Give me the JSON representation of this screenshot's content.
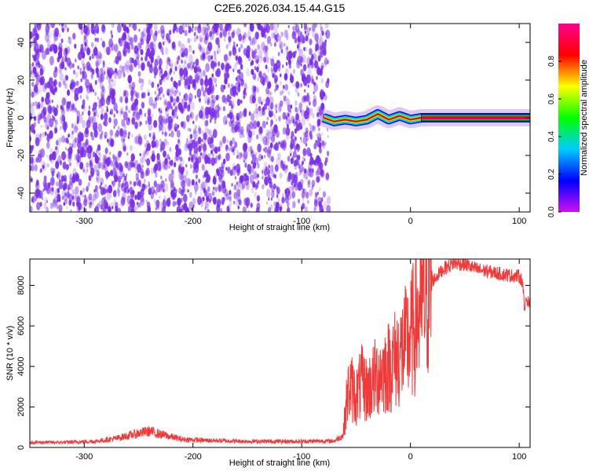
{
  "title": "C2E6.2026.034.15.44.G15",
  "colors": {
    "snr_line": "#ef3a3a",
    "spectrogram_noise": "#7a2fe6",
    "signal_core": "#e8004f",
    "colorbar_stops": [
      "#cc11ee",
      "#0000ff",
      "#00ccff",
      "#00ff00",
      "#ffff00",
      "#ff0000",
      "#ff0090"
    ]
  },
  "chart_data": [
    {
      "type": "heatmap",
      "title": "",
      "xlabel": "Height of straight line (km)",
      "ylabel": "Frequency (Hz)",
      "xlim": [
        -350,
        110
      ],
      "ylim": [
        -50,
        50
      ],
      "xticks": [
        -300,
        -200,
        -100,
        0,
        100
      ],
      "xtick_labels": [
        "-300",
        "-200",
        "-100",
        "0",
        "100"
      ],
      "yticks": [
        -40,
        -20,
        0,
        20,
        40
      ],
      "ytick_labels": [
        "-40",
        "-20",
        "0",
        "20",
        "40"
      ],
      "noise_region_x": [
        -350,
        -75
      ],
      "signal_trace": {
        "x": [
          -80,
          -70,
          -60,
          -50,
          -40,
          -30,
          -20,
          -10,
          0,
          10,
          30,
          60,
          110
        ],
        "y": [
          0,
          -2,
          -1,
          -2,
          -1,
          2,
          -1,
          1,
          -1,
          0,
          0,
          0,
          0
        ]
      },
      "colorbar": {
        "label": "Normalized spectral amplitude",
        "range": [
          0,
          1
        ],
        "ticks": [
          0.0,
          0.2,
          0.4,
          0.6,
          0.8
        ],
        "tick_labels": [
          "0.0",
          "0.2",
          "0.4",
          "0.6",
          "0.8"
        ]
      }
    },
    {
      "type": "line",
      "title": "",
      "xlabel": "Height of straight line (km)",
      "ylabel": "SNR (10 * v/v)",
      "xlim": [
        -350,
        110
      ],
      "ylim": [
        0,
        9300
      ],
      "xticks": [
        -300,
        -200,
        -100,
        0,
        100
      ],
      "xtick_labels": [
        "-300",
        "-200",
        "-100",
        "0",
        "100"
      ],
      "yticks": [
        0,
        2000,
        4000,
        6000,
        8000
      ],
      "ytick_labels": [
        "0",
        "2000",
        "4000",
        "6000",
        "8000"
      ],
      "series": [
        {
          "x": [
            -350,
            -320,
            -290,
            -270,
            -250,
            -240,
            -230,
            -210,
            -190,
            -150,
            -100,
            -70,
            -62,
            -58,
            -55,
            -50,
            -45,
            -40,
            -30,
            -20,
            -10,
            0,
            10,
            20,
            30,
            40,
            50,
            60,
            70,
            80,
            90,
            100,
            103,
            104,
            105,
            106,
            108,
            110
          ],
          "y": [
            250,
            250,
            300,
            450,
            700,
            800,
            650,
            400,
            350,
            300,
            300,
            320,
            600,
            2600,
            3000,
            2500,
            3200,
            2800,
            3600,
            4000,
            4600,
            5400,
            7000,
            8200,
            8800,
            9100,
            9050,
            8800,
            8700,
            8600,
            8500,
            8450,
            8200,
            7500,
            6500,
            7400,
            7200,
            7100
          ]
        }
      ]
    }
  ]
}
